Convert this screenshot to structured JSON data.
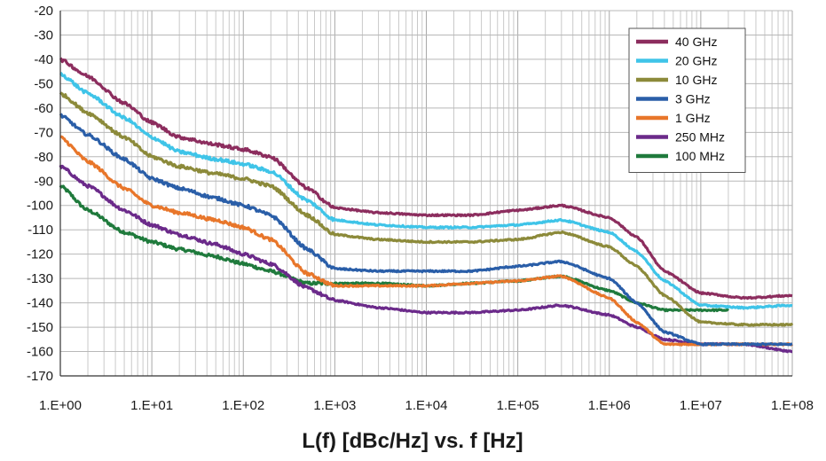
{
  "chart_data": {
    "type": "line",
    "xlabel": "L(f) [dBc/Hz] vs. f [Hz]",
    "ylabel": "",
    "xscale": "log",
    "xlim": [
      1,
      100000000
    ],
    "ylim": [
      -170,
      -20
    ],
    "grid": true,
    "legend_position": "top-right",
    "x_tick_labels": [
      "1.E+00",
      "1.E+01",
      "1.E+02",
      "1.E+03",
      "1.E+04",
      "1.E+05",
      "1.E+06",
      "1.E+07",
      "1.E+08"
    ],
    "y_tick_labels": [
      "-20",
      "-30",
      "-40",
      "-50",
      "-60",
      "-70",
      "-80",
      "-90",
      "-100",
      "-110",
      "-120",
      "-130",
      "-140",
      "-150",
      "-160",
      "-170"
    ],
    "series": [
      {
        "name": "40 GHz",
        "color": "#8c2d5e",
        "points": [
          [
            1,
            -40
          ],
          [
            2,
            -47
          ],
          [
            5,
            -58
          ],
          [
            10,
            -66
          ],
          [
            20,
            -72
          ],
          [
            50,
            -75
          ],
          [
            100,
            -77
          ],
          [
            200,
            -80
          ],
          [
            500,
            -93
          ],
          [
            1000,
            -101
          ],
          [
            3000,
            -103
          ],
          [
            10000,
            -104
          ],
          [
            30000,
            -104
          ],
          [
            100000,
            -102
          ],
          [
            300000,
            -100
          ],
          [
            1000000,
            -105
          ],
          [
            2000000,
            -113
          ],
          [
            4000000,
            -127
          ],
          [
            10000000,
            -136
          ],
          [
            30000000,
            -138
          ],
          [
            100000000,
            -137
          ]
        ]
      },
      {
        "name": "20 GHz",
        "color": "#3fc4e8",
        "points": [
          [
            1,
            -46
          ],
          [
            2,
            -54
          ],
          [
            5,
            -64
          ],
          [
            10,
            -72
          ],
          [
            20,
            -78
          ],
          [
            50,
            -81
          ],
          [
            100,
            -83
          ],
          [
            200,
            -86
          ],
          [
            500,
            -98
          ],
          [
            1000,
            -106
          ],
          [
            3000,
            -108
          ],
          [
            10000,
            -109
          ],
          [
            30000,
            -109
          ],
          [
            100000,
            -108
          ],
          [
            300000,
            -106
          ],
          [
            1000000,
            -111
          ],
          [
            2000000,
            -119
          ],
          [
            4000000,
            -131
          ],
          [
            10000000,
            -141
          ],
          [
            30000000,
            -142
          ],
          [
            100000000,
            -141
          ]
        ]
      },
      {
        "name": "10 GHz",
        "color": "#8c8a3a",
        "points": [
          [
            1,
            -54
          ],
          [
            2,
            -62
          ],
          [
            5,
            -72
          ],
          [
            10,
            -80
          ],
          [
            20,
            -84
          ],
          [
            50,
            -87
          ],
          [
            100,
            -89
          ],
          [
            200,
            -92
          ],
          [
            500,
            -104
          ],
          [
            1000,
            -112
          ],
          [
            3000,
            -114
          ],
          [
            10000,
            -115
          ],
          [
            30000,
            -115
          ],
          [
            100000,
            -114
          ],
          [
            300000,
            -111
          ],
          [
            1000000,
            -117
          ],
          [
            2000000,
            -125
          ],
          [
            4000000,
            -137
          ],
          [
            10000000,
            -148
          ],
          [
            30000000,
            -149
          ],
          [
            100000000,
            -149
          ]
        ]
      },
      {
        "name": "3 GHz",
        "color": "#2a5ea8",
        "points": [
          [
            1,
            -63
          ],
          [
            2,
            -71
          ],
          [
            5,
            -81
          ],
          [
            10,
            -89
          ],
          [
            20,
            -93
          ],
          [
            50,
            -97
          ],
          [
            100,
            -100
          ],
          [
            200,
            -104
          ],
          [
            500,
            -118
          ],
          [
            1000,
            -126
          ],
          [
            3000,
            -127
          ],
          [
            10000,
            -127
          ],
          [
            30000,
            -127
          ],
          [
            100000,
            -125
          ],
          [
            300000,
            -123
          ],
          [
            1000000,
            -130
          ],
          [
            2000000,
            -140
          ],
          [
            4000000,
            -152
          ],
          [
            10000000,
            -157
          ],
          [
            30000000,
            -157
          ],
          [
            100000000,
            -157
          ]
        ]
      },
      {
        "name": "1 GHz",
        "color": "#e8762a",
        "points": [
          [
            1,
            -72
          ],
          [
            2,
            -82
          ],
          [
            5,
            -93
          ],
          [
            10,
            -100
          ],
          [
            20,
            -103
          ],
          [
            50,
            -106
          ],
          [
            100,
            -109
          ],
          [
            200,
            -114
          ],
          [
            500,
            -128
          ],
          [
            1000,
            -133
          ],
          [
            3000,
            -133
          ],
          [
            10000,
            -133
          ],
          [
            30000,
            -132
          ],
          [
            100000,
            -131
          ],
          [
            300000,
            -129
          ],
          [
            1000000,
            -138
          ],
          [
            2000000,
            -148
          ],
          [
            4000000,
            -157
          ],
          [
            10000000,
            -157
          ],
          [
            30000000,
            -157
          ],
          [
            100000000,
            -157
          ]
        ]
      },
      {
        "name": "250 MHz",
        "color": "#6b2a8a",
        "points": [
          [
            1,
            -84
          ],
          [
            2,
            -92
          ],
          [
            5,
            -102
          ],
          [
            10,
            -108
          ],
          [
            20,
            -112
          ],
          [
            50,
            -116
          ],
          [
            100,
            -120
          ],
          [
            200,
            -124
          ],
          [
            500,
            -134
          ],
          [
            1000,
            -139
          ],
          [
            3000,
            -142
          ],
          [
            10000,
            -144
          ],
          [
            30000,
            -144
          ],
          [
            100000,
            -143
          ],
          [
            300000,
            -141
          ],
          [
            1000000,
            -145
          ],
          [
            2000000,
            -150
          ],
          [
            4000000,
            -155
          ],
          [
            10000000,
            -157
          ],
          [
            30000000,
            -157
          ],
          [
            100000000,
            -160
          ]
        ]
      },
      {
        "name": "100 MHz",
        "color": "#1f7a3c",
        "points": [
          [
            1,
            -92
          ],
          [
            2,
            -102
          ],
          [
            5,
            -111
          ],
          [
            10,
            -115
          ],
          [
            20,
            -118
          ],
          [
            50,
            -121
          ],
          [
            100,
            -124
          ],
          [
            200,
            -127
          ],
          [
            500,
            -132
          ],
          [
            1000,
            -132
          ],
          [
            3000,
            -132
          ],
          [
            10000,
            -133
          ],
          [
            30000,
            -132
          ],
          [
            100000,
            -131
          ],
          [
            300000,
            -129
          ],
          [
            1000000,
            -135
          ],
          [
            2000000,
            -140
          ],
          [
            4000000,
            -143
          ],
          [
            10000000,
            -143
          ],
          [
            20000000,
            -143
          ]
        ]
      }
    ]
  }
}
